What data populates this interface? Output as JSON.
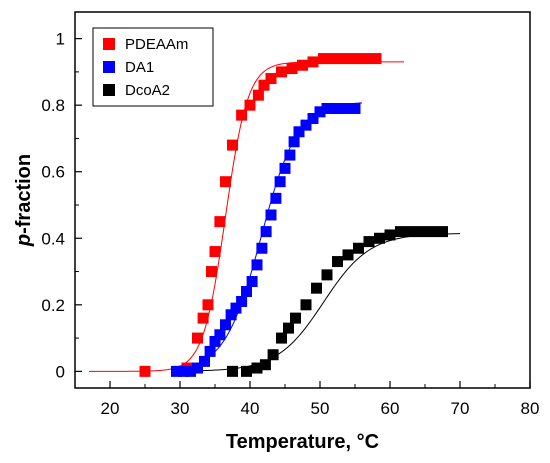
{
  "chart_data": {
    "type": "scatter",
    "xlabel": "Temperature, °C",
    "ylabel_italic": "p",
    "ylabel_rest": "-fraction",
    "xlim": [
      15,
      80
    ],
    "ylim": [
      -0.05,
      1.08
    ],
    "xticks": [
      "20",
      "30",
      "40",
      "50",
      "60",
      "70",
      "80"
    ],
    "yticks": [
      "0",
      "0.2",
      "0.4",
      "0.6",
      "0.8",
      "1"
    ],
    "legend_position": "top-left",
    "series": [
      {
        "name": "PDEAAm",
        "color": "#ff0000",
        "points": [
          [
            25,
            0
          ],
          [
            31,
            0.01
          ],
          [
            32.5,
            0.1
          ],
          [
            33.3,
            0.16
          ],
          [
            34,
            0.2
          ],
          [
            34.5,
            0.3
          ],
          [
            35,
            0.36
          ],
          [
            35.7,
            0.45
          ],
          [
            36.5,
            0.57
          ],
          [
            37.5,
            0.68
          ],
          [
            38.8,
            0.77
          ],
          [
            40,
            0.8
          ],
          [
            41.2,
            0.83
          ],
          [
            42,
            0.86
          ],
          [
            43,
            0.88
          ],
          [
            44.5,
            0.9
          ],
          [
            46,
            0.91
          ],
          [
            47.5,
            0.92
          ],
          [
            49,
            0.93
          ],
          [
            50.5,
            0.94
          ],
          [
            52,
            0.94
          ],
          [
            53.5,
            0.94
          ],
          [
            55,
            0.94
          ],
          [
            56.5,
            0.94
          ],
          [
            58,
            0.94
          ]
        ],
        "fit": {
          "bottom": 0,
          "top": 0.93,
          "x0": 36.5,
          "k": 1.6,
          "xmin": 17,
          "xmax": 62
        }
      },
      {
        "name": "DA1",
        "color": "#0000ff",
        "points": [
          [
            29.5,
            0
          ],
          [
            30.5,
            0
          ],
          [
            31.5,
            0
          ],
          [
            32.5,
            0.01
          ],
          [
            33.5,
            0.03
          ],
          [
            34.3,
            0.06
          ],
          [
            35,
            0.09
          ],
          [
            35.7,
            0.11
          ],
          [
            36.5,
            0.14
          ],
          [
            37.3,
            0.17
          ],
          [
            38,
            0.19
          ],
          [
            38.8,
            0.21
          ],
          [
            39.5,
            0.24
          ],
          [
            40.3,
            0.27
          ],
          [
            41,
            0.32
          ],
          [
            41.7,
            0.37
          ],
          [
            42.3,
            0.42
          ],
          [
            43,
            0.47
          ],
          [
            43.7,
            0.52
          ],
          [
            44.3,
            0.57
          ],
          [
            45,
            0.61
          ],
          [
            45.7,
            0.65
          ],
          [
            46.3,
            0.69
          ],
          [
            47,
            0.72
          ],
          [
            48,
            0.74
          ],
          [
            49,
            0.76
          ],
          [
            50,
            0.78
          ],
          [
            51,
            0.79
          ],
          [
            52,
            0.79
          ],
          [
            53,
            0.79
          ],
          [
            54,
            0.79
          ],
          [
            55,
            0.79
          ]
        ],
        "fit": {
          "bottom": 0,
          "top": 0.81,
          "x0": 41.6,
          "k": 2.6,
          "xmin": 29,
          "xmax": 56
        }
      },
      {
        "name": "DcoA2",
        "color": "#000000",
        "points": [
          [
            37.5,
            0
          ],
          [
            39.5,
            0
          ],
          [
            41,
            0.01
          ],
          [
            42.2,
            0.02
          ],
          [
            43.3,
            0.05
          ],
          [
            44.5,
            0.1
          ],
          [
            45.5,
            0.13
          ],
          [
            46.5,
            0.16
          ],
          [
            48,
            0.2
          ],
          [
            49.5,
            0.25
          ],
          [
            51,
            0.29
          ],
          [
            52.5,
            0.33
          ],
          [
            54,
            0.35
          ],
          [
            55.5,
            0.37
          ],
          [
            57,
            0.39
          ],
          [
            58.5,
            0.4
          ],
          [
            60,
            0.41
          ],
          [
            61.5,
            0.42
          ],
          [
            63,
            0.42
          ],
          [
            64.5,
            0.42
          ],
          [
            66,
            0.42
          ],
          [
            67.5,
            0.42
          ]
        ],
        "fit": {
          "bottom": 0,
          "top": 0.415,
          "x0": 50.5,
          "k": 3.3,
          "xmin": 29,
          "xmax": 70
        }
      }
    ]
  }
}
